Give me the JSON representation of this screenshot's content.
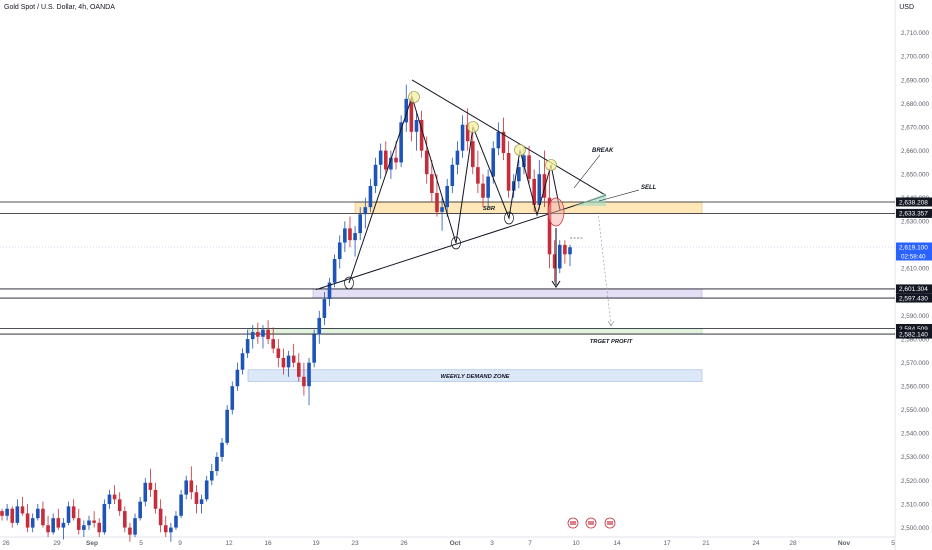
{
  "header": {
    "symbol_title": "Gold Spot / U.S. Dollar, 4h, OANDA",
    "currency": "USD"
  },
  "chart_data": {
    "type": "candlestick",
    "title": "Gold Spot / U.S. Dollar, 4h, OANDA",
    "currency": "USD",
    "ylim": [
      2496,
      2718
    ],
    "y_ticks": [
      2500,
      2510,
      2520,
      2530,
      2540,
      2550,
      2560,
      2570,
      2580,
      2590,
      2600,
      2610,
      2620,
      2630,
      2640,
      2650,
      2660,
      2670,
      2680,
      2690,
      2700,
      2710
    ],
    "x_ticks": [
      "26",
      "29",
      "Sep",
      "5",
      "9",
      "12",
      "16",
      "19",
      "23",
      "26",
      "Oct",
      "3",
      "7",
      "10",
      "14",
      "17",
      "21",
      "24",
      "28",
      "Nov",
      "5"
    ],
    "price_markers": [
      {
        "price": 2638.208,
        "label": "2,638.208",
        "style": "black"
      },
      {
        "price": 2633.357,
        "label": "2,633.357",
        "style": "black"
      },
      {
        "price": 2619.1,
        "label": "2,619.100",
        "style": "blue"
      },
      {
        "price": 2601.304,
        "label": "2,601.304",
        "style": "black"
      },
      {
        "price": 2597.43,
        "label": "2,597.430",
        "style": "black"
      },
      {
        "price": 2584.509,
        "label": "2,584.509",
        "style": "black"
      },
      {
        "price": 2582.14,
        "label": "2,582.140",
        "style": "black"
      }
    ],
    "countdown": "02:58:40",
    "zones": [
      {
        "name": "SBR",
        "label": "SBR",
        "from": 2633.357,
        "to": 2638.208,
        "color": "#ffe7b8"
      },
      {
        "name": "supply-demand-purple",
        "label": "",
        "from": 2597.43,
        "to": 2601.304,
        "color": "#e4dff4"
      },
      {
        "name": "target",
        "label": "TRGET PROFIT",
        "from": 2582.14,
        "to": 2584.509,
        "color": "#e2f2df"
      },
      {
        "name": "weekly-demand",
        "label": "WEEKLY DEMAND ZONE",
        "from": 2562,
        "to": 2567,
        "color": "#dce8f8"
      }
    ],
    "annotations": [
      "BREAK",
      "SELL"
    ],
    "triangle": {
      "apex_price": 2641,
      "upper_start_price": 2690,
      "lower_start_price": 2601
    },
    "candles": [
      [
        2507,
        2508,
        2503,
        2505
      ],
      [
        2505,
        2510,
        2503,
        2508
      ],
      [
        2508,
        2509,
        2500,
        2502
      ],
      [
        2502,
        2512,
        2501,
        2509
      ],
      [
        2509,
        2513,
        2505,
        2506
      ],
      [
        2506,
        2510,
        2498,
        2500
      ],
      [
        2500,
        2506,
        2498,
        2504
      ],
      [
        2504,
        2510,
        2503,
        2508
      ],
      [
        2508,
        2511,
        2500,
        2501
      ],
      [
        2501,
        2505,
        2496,
        2498
      ],
      [
        2498,
        2506,
        2497,
        2504
      ],
      [
        2504,
        2508,
        2499,
        2500
      ],
      [
        2500,
        2504,
        2495,
        2502
      ],
      [
        2502,
        2511,
        2501,
        2509
      ],
      [
        2509,
        2512,
        2503,
        2504
      ],
      [
        2504,
        2508,
        2497,
        2499
      ],
      [
        2499,
        2503,
        2496,
        2501
      ],
      [
        2501,
        2505,
        2499,
        2503
      ],
      [
        2503,
        2507,
        2500,
        2502
      ],
      [
        2502,
        2504,
        2496,
        2498
      ],
      [
        2498,
        2512,
        2497,
        2510
      ],
      [
        2510,
        2516,
        2508,
        2514
      ],
      [
        2514,
        2518,
        2510,
        2512
      ],
      [
        2512,
        2515,
        2505,
        2507
      ],
      [
        2507,
        2509,
        2498,
        2500
      ],
      [
        2500,
        2502,
        2494,
        2497
      ],
      [
        2497,
        2506,
        2496,
        2504
      ],
      [
        2504,
        2513,
        2503,
        2511
      ],
      [
        2511,
        2521,
        2509,
        2519
      ],
      [
        2519,
        2525,
        2513,
        2516
      ],
      [
        2516,
        2519,
        2506,
        2508
      ],
      [
        2508,
        2512,
        2498,
        2501
      ],
      [
        2501,
        2505,
        2496,
        2498
      ],
      [
        2498,
        2502,
        2494,
        2500
      ],
      [
        2500,
        2507,
        2499,
        2505
      ],
      [
        2505,
        2516,
        2504,
        2514
      ],
      [
        2514,
        2522,
        2512,
        2520
      ],
      [
        2520,
        2526,
        2512,
        2515
      ],
      [
        2515,
        2518,
        2506,
        2510
      ],
      [
        2510,
        2514,
        2506,
        2512
      ],
      [
        2512,
        2522,
        2511,
        2520
      ],
      [
        2520,
        2527,
        2518,
        2524
      ],
      [
        2524,
        2532,
        2522,
        2530
      ],
      [
        2530,
        2538,
        2528,
        2536
      ],
      [
        2536,
        2552,
        2535,
        2550
      ],
      [
        2550,
        2562,
        2548,
        2560
      ],
      [
        2560,
        2570,
        2558,
        2567
      ],
      [
        2567,
        2576,
        2565,
        2574
      ],
      [
        2574,
        2584,
        2572,
        2580
      ],
      [
        2580,
        2586,
        2576,
        2583
      ],
      [
        2583,
        2587,
        2578,
        2581
      ],
      [
        2581,
        2586,
        2576,
        2584
      ],
      [
        2584,
        2588,
        2578,
        2580
      ],
      [
        2580,
        2585,
        2574,
        2576
      ],
      [
        2576,
        2580,
        2568,
        2572
      ],
      [
        2572,
        2576,
        2565,
        2568
      ],
      [
        2568,
        2575,
        2564,
        2573
      ],
      [
        2573,
        2578,
        2568,
        2570
      ],
      [
        2570,
        2574,
        2562,
        2564
      ],
      [
        2564,
        2570,
        2556,
        2560
      ],
      [
        2560,
        2572,
        2552,
        2570
      ],
      [
        2570,
        2584,
        2568,
        2582
      ],
      [
        2582,
        2592,
        2578,
        2589
      ],
      [
        2589,
        2600,
        2586,
        2597
      ],
      [
        2597,
        2606,
        2594,
        2604
      ],
      [
        2604,
        2616,
        2602,
        2614
      ],
      [
        2614,
        2624,
        2610,
        2621
      ],
      [
        2621,
        2630,
        2617,
        2627
      ],
      [
        2627,
        2632,
        2619,
        2622
      ],
      [
        2622,
        2628,
        2615,
        2625
      ],
      [
        2625,
        2636,
        2622,
        2633
      ],
      [
        2633,
        2640,
        2627,
        2636
      ],
      [
        2636,
        2648,
        2634,
        2645
      ],
      [
        2645,
        2657,
        2642,
        2654
      ],
      [
        2654,
        2663,
        2648,
        2660
      ],
      [
        2660,
        2664,
        2650,
        2652
      ],
      [
        2652,
        2660,
        2648,
        2657
      ],
      [
        2657,
        2664,
        2652,
        2655
      ],
      [
        2655,
        2675,
        2653,
        2672
      ],
      [
        2672,
        2688,
        2668,
        2682
      ],
      [
        2682,
        2685,
        2664,
        2668
      ],
      [
        2668,
        2676,
        2660,
        2673
      ],
      [
        2673,
        2677,
        2657,
        2660
      ],
      [
        2660,
        2666,
        2646,
        2650
      ],
      [
        2650,
        2656,
        2638,
        2642
      ],
      [
        2642,
        2650,
        2632,
        2634
      ],
      [
        2634,
        2640,
        2626,
        2636
      ],
      [
        2636,
        2648,
        2632,
        2645
      ],
      [
        2645,
        2657,
        2642,
        2654
      ],
      [
        2654,
        2664,
        2650,
        2660
      ],
      [
        2660,
        2675,
        2657,
        2671
      ],
      [
        2671,
        2678,
        2660,
        2664
      ],
      [
        2664,
        2668,
        2650,
        2653
      ],
      [
        2653,
        2660,
        2642,
        2646
      ],
      [
        2646,
        2650,
        2636,
        2640
      ],
      [
        2640,
        2652,
        2636,
        2649
      ],
      [
        2649,
        2664,
        2646,
        2661
      ],
      [
        2661,
        2672,
        2658,
        2668
      ],
      [
        2668,
        2674,
        2656,
        2659
      ],
      [
        2659,
        2664,
        2640,
        2643
      ],
      [
        2643,
        2650,
        2640,
        2647
      ],
      [
        2647,
        2656,
        2644,
        2653
      ],
      [
        2653,
        2662,
        2650,
        2658
      ],
      [
        2658,
        2662,
        2646,
        2648
      ],
      [
        2648,
        2652,
        2634,
        2637
      ],
      [
        2637,
        2656,
        2635,
        2650
      ],
      [
        2650,
        2660,
        2636,
        2640
      ],
      [
        2640,
        2652,
        2610,
        2616
      ],
      [
        2616,
        2622,
        2604,
        2610
      ],
      [
        2610,
        2622,
        2608,
        2620
      ],
      [
        2620,
        2622,
        2612,
        2616
      ],
      [
        2616,
        2620,
        2611,
        2619
      ]
    ]
  }
}
